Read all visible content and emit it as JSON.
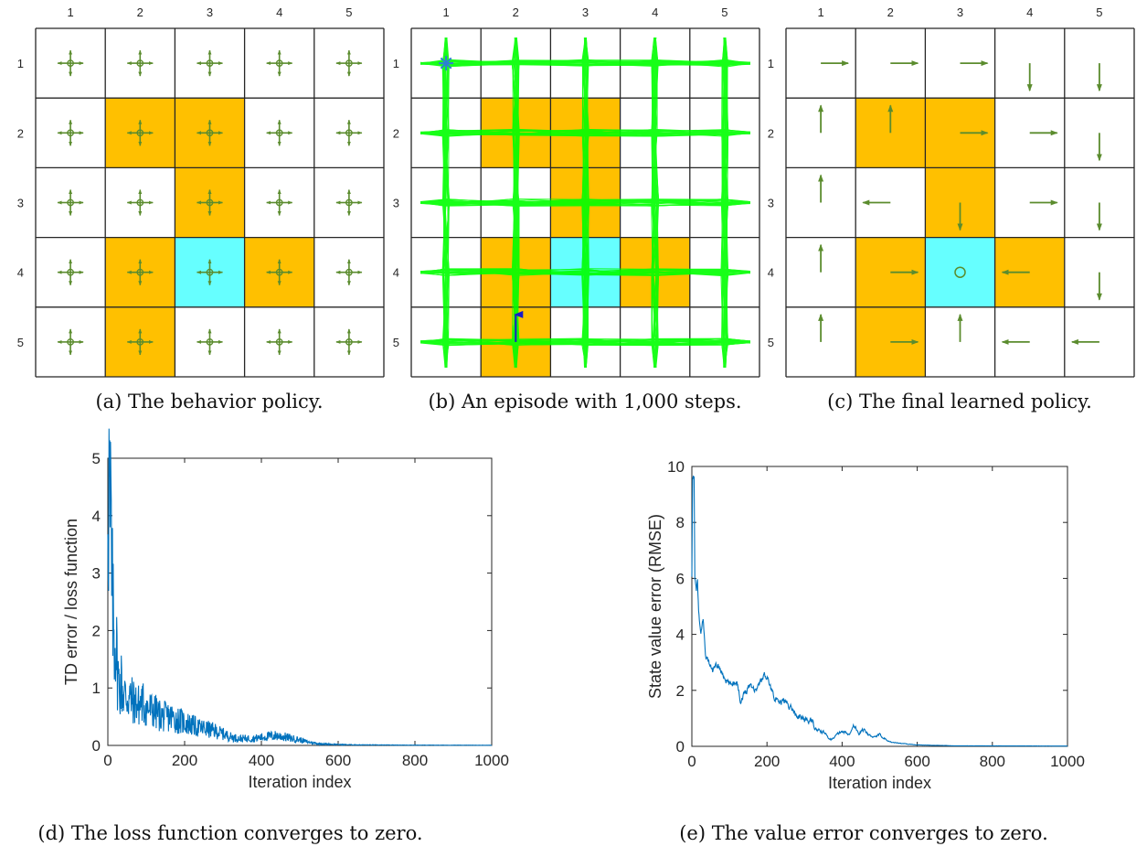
{
  "colors": {
    "obstacle": "#FFC000",
    "target": "#66FFFF",
    "empty": "#FFFFFF",
    "arrow": "#5B8C2E",
    "trajectory": "#00FF00",
    "start_marker": "#2E7FD1",
    "end_arrow": "#1A1AC8",
    "line": "#0072BD",
    "grid_line": "#262626"
  },
  "grid": {
    "rows": 5,
    "cols": 5,
    "col_labels": [
      "1",
      "2",
      "3",
      "4",
      "5"
    ],
    "row_labels": [
      "1",
      "2",
      "3",
      "4",
      "5"
    ],
    "cell_types": [
      [
        "empty",
        "empty",
        "empty",
        "empty",
        "empty"
      ],
      [
        "empty",
        "obstacle",
        "obstacle",
        "empty",
        "empty"
      ],
      [
        "empty",
        "empty",
        "obstacle",
        "empty",
        "empty"
      ],
      [
        "empty",
        "obstacle",
        "target",
        "obstacle",
        "empty"
      ],
      [
        "empty",
        "obstacle",
        "empty",
        "empty",
        "empty"
      ]
    ]
  },
  "panels": {
    "a": {
      "caption": "(a) The behavior policy.",
      "policy": "uniform: up, down, left, right, stay in every cell"
    },
    "b": {
      "caption": "(b) An episode with 1,000 steps.",
      "start_cell": [
        1,
        1
      ],
      "end_cell": [
        5,
        2
      ],
      "end_action": "up"
    },
    "c": {
      "caption": "(c) The final learned policy.",
      "policy": [
        [
          "right",
          "right",
          "right",
          "down",
          "down"
        ],
        [
          "up",
          "up",
          "right",
          "right",
          "down"
        ],
        [
          "up",
          "left",
          "down",
          "right",
          "down"
        ],
        [
          "up",
          "right",
          "stay",
          "left",
          "down"
        ],
        [
          "up",
          "right",
          "up",
          "left",
          "left"
        ]
      ]
    },
    "d": {
      "caption": "(d) The loss function converges to zero."
    },
    "e": {
      "caption": "(e) The value error converges to zero."
    }
  },
  "chart_data": [
    {
      "type": "line",
      "title": "",
      "xlabel": "Iteration index",
      "ylabel": "TD error / loss function",
      "xlim": [
        0,
        1000
      ],
      "ylim": [
        0,
        5
      ],
      "xticks": [
        "0",
        "200",
        "400",
        "600",
        "800",
        "1000"
      ],
      "yticks": [
        "0",
        "1",
        "2",
        "3",
        "4",
        "5"
      ],
      "grid": false,
      "series": [
        {
          "name": "TD error",
          "x": [
            0,
            2,
            4,
            6,
            8,
            10,
            12,
            15,
            18,
            20,
            25,
            30,
            35,
            40,
            50,
            60,
            70,
            80,
            90,
            100,
            120,
            140,
            160,
            180,
            200,
            220,
            240,
            250,
            260,
            280,
            300,
            320,
            340,
            360,
            380,
            400,
            420,
            440,
            460,
            480,
            500,
            520,
            550,
            600,
            650,
            700,
            800,
            900,
            1000
          ],
          "values": [
            4.9,
            4.5,
            4.6,
            3.5,
            4.1,
            2.6,
            2.5,
            2.0,
            1.8,
            2.0,
            1.3,
            1.0,
            1.1,
            0.9,
            0.85,
            0.8,
            0.75,
            0.7,
            0.75,
            0.65,
            0.6,
            0.5,
            0.5,
            0.45,
            0.4,
            0.35,
            0.3,
            0.3,
            0.28,
            0.25,
            0.2,
            0.15,
            0.12,
            0.12,
            0.12,
            0.14,
            0.16,
            0.17,
            0.15,
            0.12,
            0.1,
            0.06,
            0.03,
            0.015,
            0.01,
            0.008,
            0.005,
            0.004,
            0.003
          ],
          "noise_amplitude_note": "high-frequency noise, peaks approx 2.0 at ~40, 1.5 at ~90, 1.0 at ~240"
        }
      ]
    },
    {
      "type": "line",
      "title": "",
      "xlabel": "Iteration index",
      "ylabel": "State value error (RMSE)",
      "xlim": [
        0,
        1000
      ],
      "ylim": [
        0,
        10
      ],
      "xticks": [
        "0",
        "200",
        "400",
        "600",
        "800",
        "1000"
      ],
      "yticks": [
        "0",
        "2",
        "4",
        "6",
        "8",
        "10"
      ],
      "grid": false,
      "series": [
        {
          "name": "RMSE",
          "x": [
            0,
            2,
            6,
            8,
            12,
            15,
            18,
            24,
            30,
            36,
            45,
            55,
            70,
            85,
            100,
            120,
            130,
            140,
            155,
            170,
            190,
            200,
            210,
            230,
            245,
            260,
            280,
            300,
            320,
            330,
            350,
            370,
            400,
            420,
            430,
            445,
            460,
            480,
            500,
            530,
            560,
            600,
            700,
            1000
          ],
          "values": [
            6.0,
            9.5,
            9.7,
            6.0,
            5.5,
            5.9,
            4.8,
            3.9,
            4.6,
            3.3,
            3.0,
            2.7,
            2.9,
            2.5,
            2.2,
            2.35,
            1.6,
            1.9,
            2.25,
            2.0,
            2.5,
            2.55,
            2.1,
            1.5,
            1.65,
            1.45,
            1.1,
            0.95,
            0.9,
            0.6,
            0.5,
            0.25,
            0.55,
            0.4,
            0.8,
            0.45,
            0.6,
            0.3,
            0.4,
            0.15,
            0.1,
            0.05,
            0.02,
            0.01
          ]
        }
      ]
    }
  ]
}
